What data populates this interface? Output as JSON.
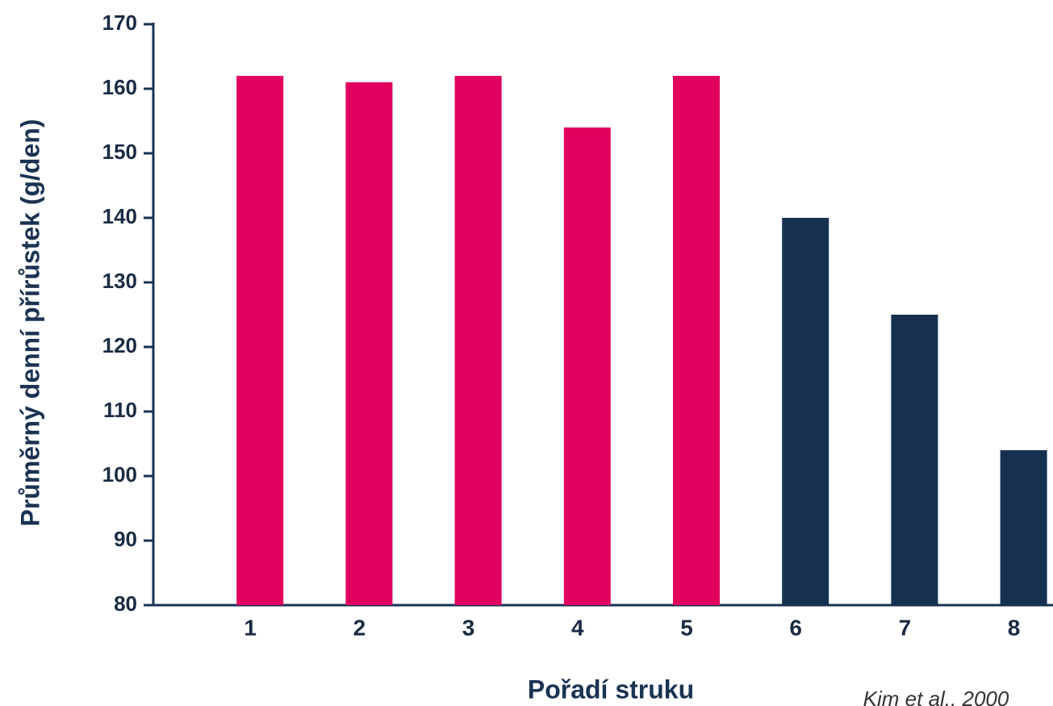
{
  "chart_data": {
    "type": "bar",
    "y_label": "Průměrný denní přírůstek (g/den)",
    "x_label": "Pořadí struku",
    "source": "Kim et al., 2000",
    "categories": [
      "1",
      "2",
      "3",
      "4",
      "5",
      "6",
      "7",
      "8"
    ],
    "values": [
      162,
      161,
      162,
      154,
      162,
      140,
      125,
      104
    ],
    "colors": [
      "#e2005f",
      "#e2005f",
      "#e2005f",
      "#e2005f",
      "#e2005f",
      "#16304f",
      "#16304f",
      "#16304f"
    ],
    "ylim": [
      80,
      170
    ],
    "yticks": [
      80,
      90,
      100,
      110,
      120,
      130,
      140,
      150,
      160,
      170
    ],
    "grid": false
  }
}
